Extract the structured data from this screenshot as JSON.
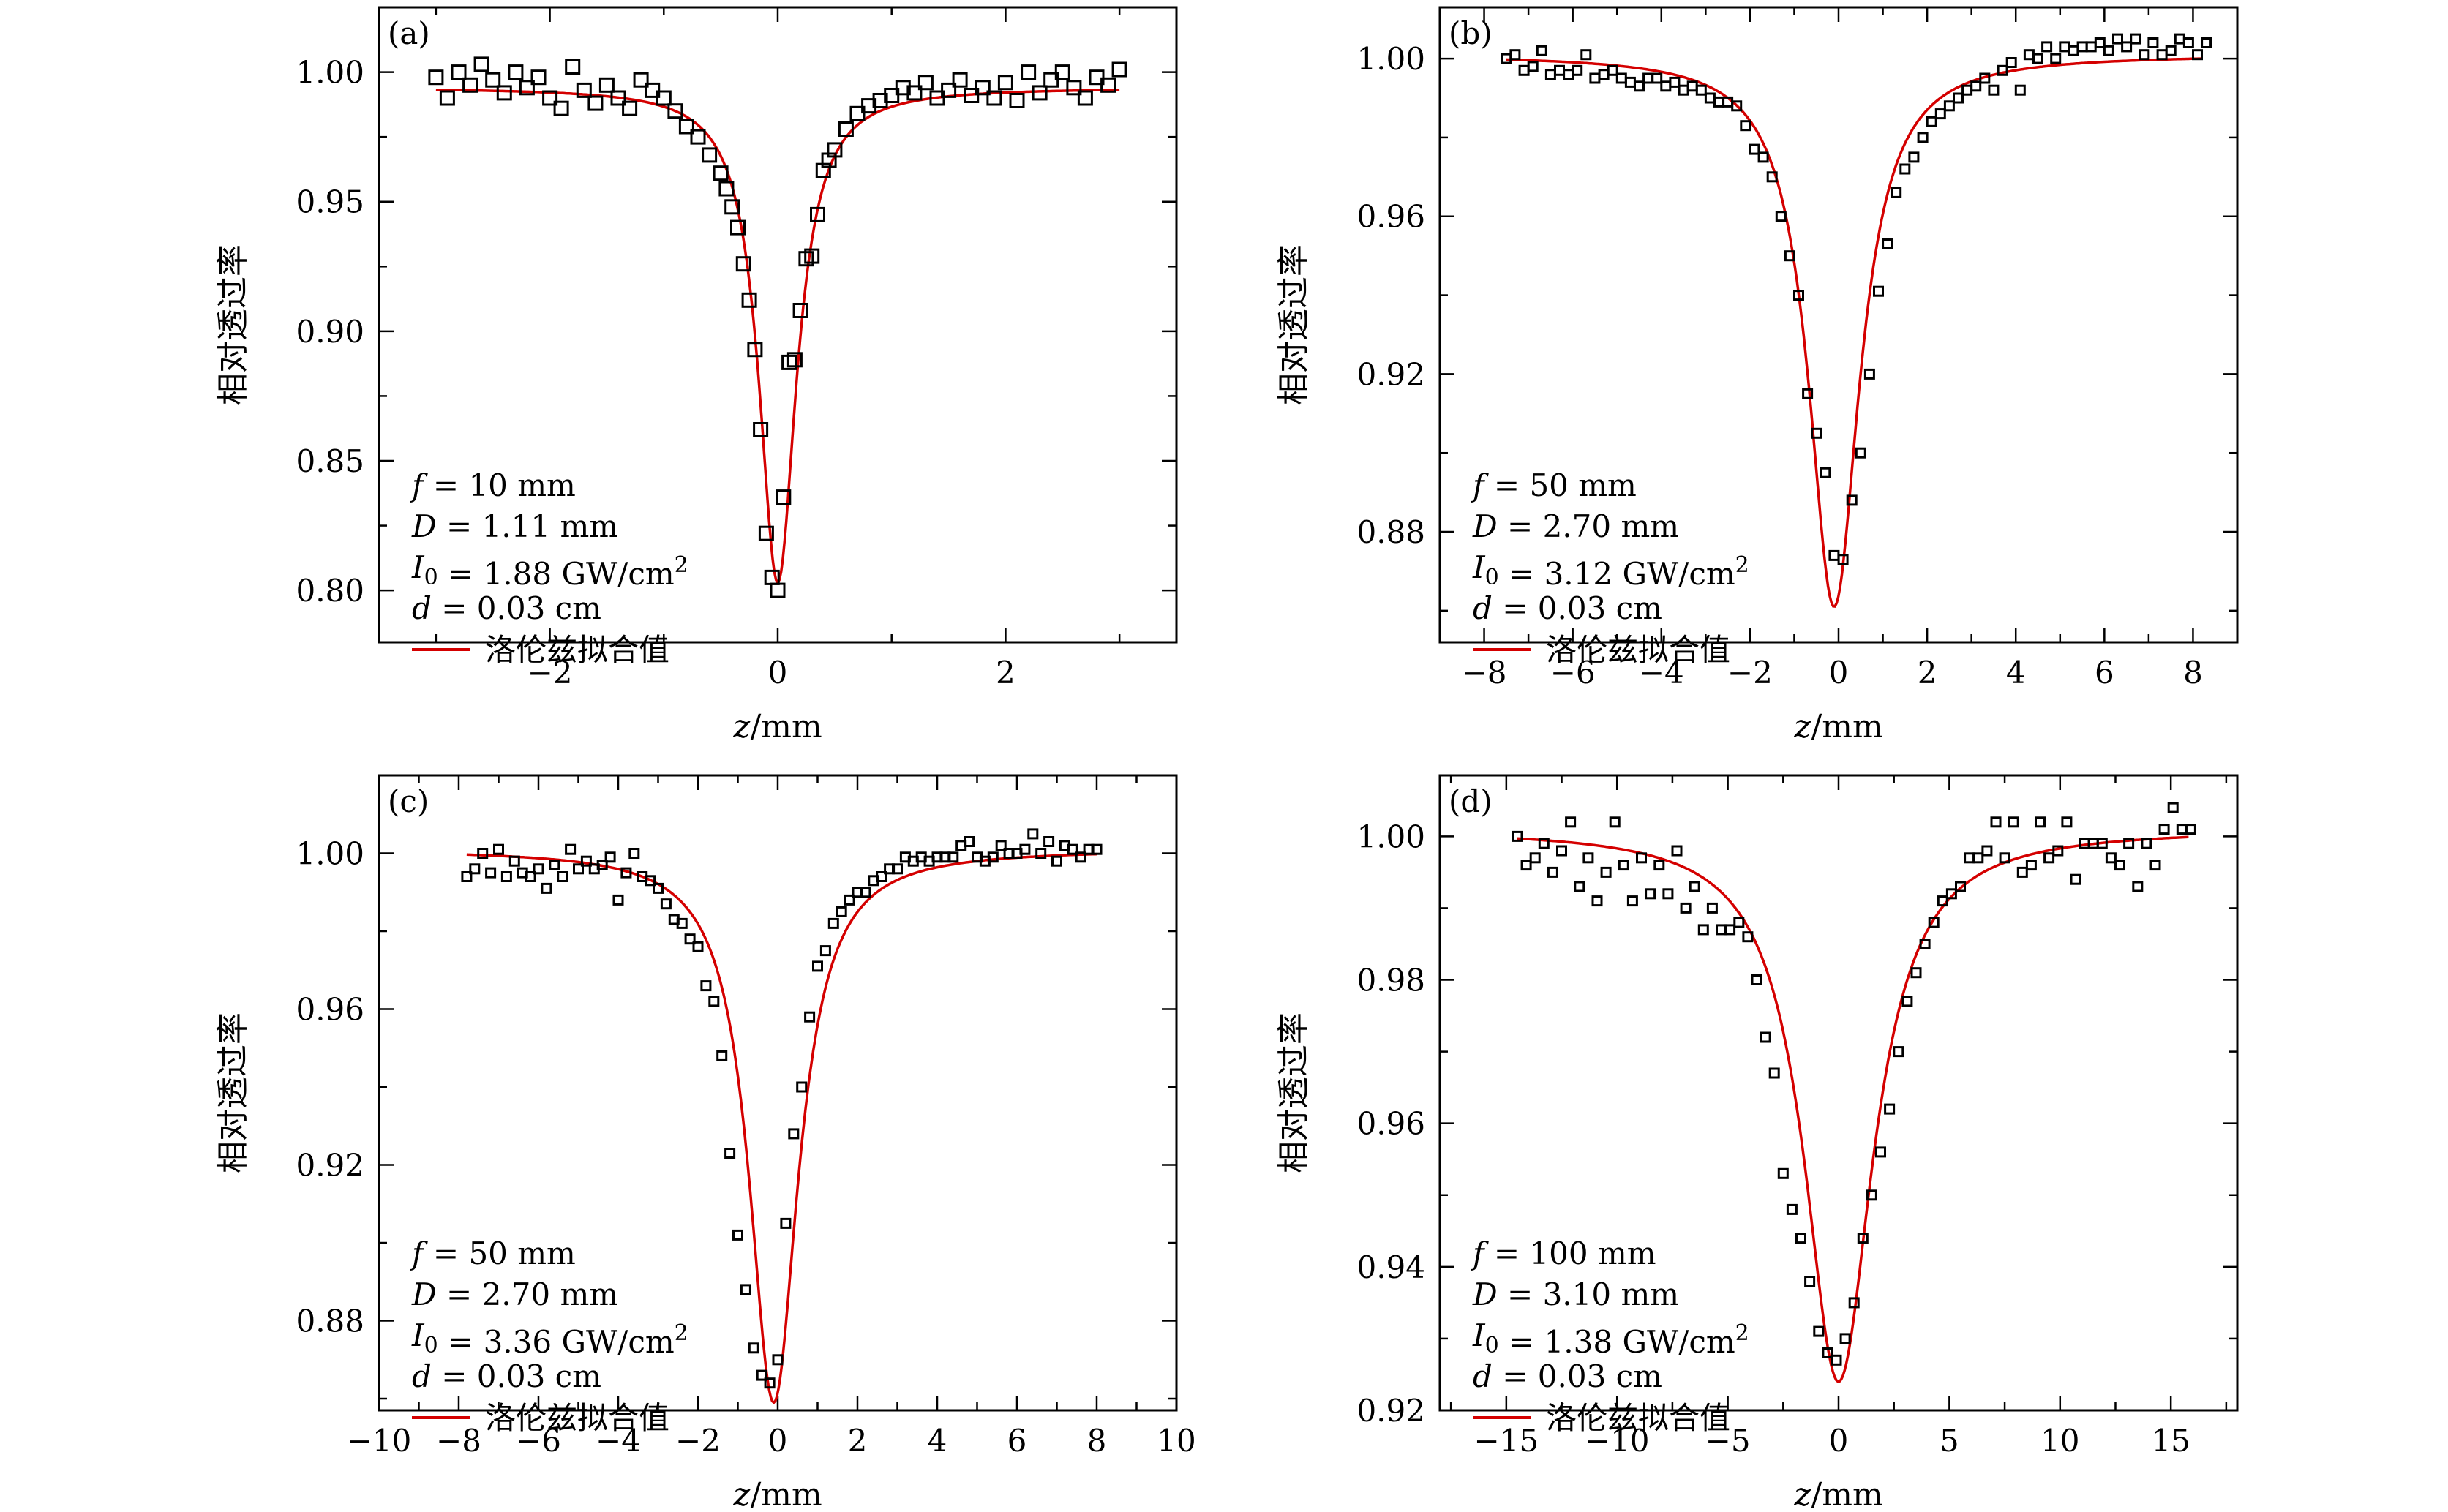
{
  "colors": {
    "fit": "#d40000",
    "points": "#000000",
    "background": "#ffffff"
  },
  "chart_data": [
    {
      "type": "scatter",
      "panel": "(a)",
      "xlabel": "z/mm",
      "ylabel": "相对透过率",
      "xlim": [
        -3.5,
        3.5
      ],
      "ylim": [
        0.78,
        1.025
      ],
      "xticks": [
        -2,
        0,
        2
      ],
      "xtick_labels": [
        "−2",
        "0",
        "2"
      ],
      "yticks": [
        0.8,
        0.85,
        0.9,
        0.95,
        1.0
      ],
      "ytick_labels": [
        "0.80",
        "0.85",
        "0.90",
        "0.95",
        "1.00"
      ],
      "legend": "洛伦兹拟合值",
      "legend_position": "bottom-left",
      "annotations": [
        "f = 10 mm",
        "D = 1.11 mm",
        "I0 = 1.88 GW/cm2",
        "d = 0.03 cm"
      ],
      "fit": {
        "baseline": 0.994,
        "min": 0.803,
        "center": 0.0,
        "hwhm": 0.2,
        "x_range": [
          -3.0,
          3.0
        ]
      },
      "series": [
        {
          "name": "data",
          "x": [
            -3.0,
            -2.9,
            -2.8,
            -2.7,
            -2.6,
            -2.5,
            -2.4,
            -2.3,
            -2.2,
            -2.1,
            -2.0,
            -1.9,
            -1.8,
            -1.7,
            -1.6,
            -1.5,
            -1.4,
            -1.3,
            -1.2,
            -1.1,
            -1.0,
            -0.9,
            -0.8,
            -0.7,
            -0.6,
            -0.5,
            -0.45,
            -0.4,
            -0.35,
            -0.3,
            -0.25,
            -0.2,
            -0.15,
            -0.1,
            -0.05,
            0.0,
            0.05,
            0.1,
            0.15,
            0.2,
            0.25,
            0.3,
            0.35,
            0.4,
            0.45,
            0.5,
            0.6,
            0.7,
            0.8,
            0.9,
            1.0,
            1.1,
            1.2,
            1.3,
            1.4,
            1.5,
            1.6,
            1.7,
            1.8,
            1.9,
            2.0,
            2.1,
            2.2,
            2.3,
            2.4,
            2.5,
            2.6,
            2.7,
            2.8,
            2.9,
            3.0
          ],
          "y": [
            0.998,
            0.99,
            1.0,
            0.995,
            1.003,
            0.997,
            0.992,
            1.0,
            0.994,
            0.998,
            0.99,
            0.986,
            1.002,
            0.993,
            0.988,
            0.995,
            0.99,
            0.986,
            0.997,
            0.993,
            0.99,
            0.985,
            0.979,
            0.975,
            0.968,
            0.961,
            0.955,
            0.948,
            0.94,
            0.926,
            0.912,
            0.893,
            0.862,
            0.822,
            0.805,
            0.8,
            0.836,
            0.888,
            0.889,
            0.908,
            0.928,
            0.929,
            0.945,
            0.962,
            0.966,
            0.97,
            0.978,
            0.984,
            0.987,
            0.989,
            0.991,
            0.994,
            0.992,
            0.996,
            0.99,
            0.993,
            0.997,
            0.991,
            0.994,
            0.99,
            0.996,
            0.989,
            1.0,
            0.992,
            0.997,
            1.0,
            0.994,
            0.99,
            0.998,
            0.995,
            1.001
          ]
        }
      ]
    },
    {
      "type": "scatter",
      "panel": "(b)",
      "xlabel": "z/mm",
      "ylabel": "相对透过率",
      "xlim": [
        -9,
        9
      ],
      "ylim": [
        0.852,
        1.013
      ],
      "xticks": [
        -8,
        -6,
        -4,
        -2,
        0,
        2,
        4,
        6,
        8
      ],
      "xtick_labels": [
        "−8",
        "−6",
        "−4",
        "−2",
        "0",
        "2",
        "4",
        "6",
        "8"
      ],
      "yticks": [
        0.88,
        0.92,
        0.96,
        1.0
      ],
      "ytick_labels": [
        "0.88",
        "0.92",
        "0.96",
        "1.00"
      ],
      "legend": "洛伦兹拟合值",
      "legend_position": "bottom-left",
      "annotations": [
        "f = 50 mm",
        "D = 2.70 mm",
        "I0 = 3.12 GW/cm2",
        "d = 0.03 cm"
      ],
      "fit": {
        "baseline": 1.001,
        "min": 0.861,
        "center": -0.1,
        "hwhm": 0.7,
        "x_range": [
          -7.5,
          8.2
        ]
      },
      "series": [
        {
          "name": "data",
          "x": [
            -7.5,
            -7.3,
            -7.1,
            -6.9,
            -6.7,
            -6.5,
            -6.3,
            -6.1,
            -5.9,
            -5.7,
            -5.5,
            -5.3,
            -5.1,
            -4.9,
            -4.7,
            -4.5,
            -4.3,
            -4.1,
            -3.9,
            -3.7,
            -3.5,
            -3.3,
            -3.1,
            -2.9,
            -2.7,
            -2.5,
            -2.3,
            -2.1,
            -1.9,
            -1.7,
            -1.5,
            -1.3,
            -1.1,
            -0.9,
            -0.7,
            -0.5,
            -0.3,
            -0.1,
            0.1,
            0.3,
            0.5,
            0.7,
            0.9,
            1.1,
            1.3,
            1.5,
            1.7,
            1.9,
            2.1,
            2.3,
            2.5,
            2.7,
            2.9,
            3.1,
            3.3,
            3.5,
            3.7,
            3.9,
            4.1,
            4.3,
            4.5,
            4.7,
            4.9,
            5.1,
            5.3,
            5.5,
            5.7,
            5.9,
            6.1,
            6.3,
            6.5,
            6.7,
            6.9,
            7.1,
            7.3,
            7.5,
            7.7,
            7.9,
            8.1,
            8.3
          ],
          "y": [
            1.0,
            1.001,
            0.997,
            0.998,
            1.002,
            0.996,
            0.997,
            0.996,
            0.997,
            1.001,
            0.995,
            0.996,
            0.997,
            0.995,
            0.994,
            0.993,
            0.995,
            0.995,
            0.993,
            0.994,
            0.992,
            0.993,
            0.992,
            0.99,
            0.989,
            0.989,
            0.988,
            0.983,
            0.977,
            0.975,
            0.97,
            0.96,
            0.95,
            0.94,
            0.915,
            0.905,
            0.895,
            0.874,
            0.873,
            0.888,
            0.9,
            0.92,
            0.941,
            0.953,
            0.966,
            0.972,
            0.975,
            0.98,
            0.984,
            0.986,
            0.988,
            0.99,
            0.992,
            0.993,
            0.995,
            0.992,
            0.997,
            0.999,
            0.992,
            1.001,
            1.0,
            1.003,
            1.0,
            1.003,
            1.002,
            1.003,
            1.003,
            1.004,
            1.002,
            1.005,
            1.003,
            1.005,
            1.001,
            1.004,
            1.001,
            1.002,
            1.005,
            1.004,
            1.001,
            1.004
          ]
        }
      ]
    },
    {
      "type": "scatter",
      "panel": "(c)",
      "xlabel": "z/mm",
      "ylabel": "相对透过率",
      "xlim": [
        -10,
        10
      ],
      "ylim": [
        0.857,
        1.02
      ],
      "xticks": [
        -10,
        -8,
        -6,
        -4,
        -2,
        0,
        2,
        4,
        6,
        8,
        10
      ],
      "xtick_labels": [
        "−10",
        "−8",
        "−6",
        "−4",
        "−2",
        "0",
        "2",
        "4",
        "6",
        "8",
        "10"
      ],
      "yticks": [
        0.88,
        0.92,
        0.96,
        1.0
      ],
      "ytick_labels": [
        "0.88",
        "0.92",
        "0.96",
        "1.00"
      ],
      "legend": "洛伦兹拟合值",
      "legend_position": "bottom-left",
      "annotations": [
        "f = 50 mm",
        "D = 2.70 mm",
        "I0 = 3.36 GW/cm2",
        "d = 0.03 cm"
      ],
      "fit": {
        "baseline": 1.001,
        "min": 0.859,
        "center": -0.1,
        "hwhm": 0.75,
        "x_range": [
          -7.8,
          8.0
        ]
      },
      "series": [
        {
          "name": "data",
          "x": [
            -7.8,
            -7.6,
            -7.4,
            -7.2,
            -7.0,
            -6.8,
            -6.6,
            -6.4,
            -6.2,
            -6.0,
            -5.8,
            -5.6,
            -5.4,
            -5.2,
            -5.0,
            -4.8,
            -4.6,
            -4.4,
            -4.2,
            -4.0,
            -3.8,
            -3.6,
            -3.4,
            -3.2,
            -3.0,
            -2.8,
            -2.6,
            -2.4,
            -2.2,
            -2.0,
            -1.8,
            -1.6,
            -1.4,
            -1.2,
            -1.0,
            -0.8,
            -0.6,
            -0.4,
            -0.2,
            0.0,
            0.2,
            0.4,
            0.6,
            0.8,
            1.0,
            1.2,
            1.4,
            1.6,
            1.8,
            2.0,
            2.2,
            2.4,
            2.6,
            2.8,
            3.0,
            3.2,
            3.4,
            3.6,
            3.8,
            4.0,
            4.2,
            4.4,
            4.6,
            4.8,
            5.0,
            5.2,
            5.4,
            5.6,
            5.8,
            6.0,
            6.2,
            6.4,
            6.6,
            6.8,
            7.0,
            7.2,
            7.4,
            7.6,
            7.8,
            8.0
          ],
          "y": [
            0.994,
            0.996,
            1.0,
            0.995,
            1.001,
            0.994,
            0.998,
            0.995,
            0.994,
            0.996,
            0.991,
            0.997,
            0.994,
            1.001,
            0.996,
            0.998,
            0.996,
            0.997,
            0.999,
            0.988,
            0.995,
            1.0,
            0.994,
            0.993,
            0.991,
            0.987,
            0.983,
            0.982,
            0.978,
            0.976,
            0.966,
            0.962,
            0.948,
            0.923,
            0.902,
            0.888,
            0.873,
            0.866,
            0.864,
            0.87,
            0.905,
            0.928,
            0.94,
            0.958,
            0.971,
            0.975,
            0.982,
            0.985,
            0.988,
            0.99,
            0.99,
            0.993,
            0.994,
            0.996,
            0.996,
            0.999,
            0.998,
            0.999,
            0.998,
            0.999,
            0.999,
            0.999,
            1.002,
            1.003,
            0.999,
            0.998,
            0.999,
            1.002,
            1.0,
            1.0,
            1.001,
            1.005,
            1.0,
            1.003,
            0.998,
            1.002,
            1.001,
            0.999,
            1.001,
            1.001
          ]
        }
      ]
    },
    {
      "type": "scatter",
      "panel": "(d)",
      "xlabel": "z/mm",
      "ylabel": "相对透过率",
      "xlim": [
        -18,
        18
      ],
      "ylim": [
        0.92,
        1.0085
      ],
      "xticks": [
        -15,
        -10,
        -5,
        0,
        5,
        10,
        15
      ],
      "xtick_labels": [
        "−15",
        "−10",
        "−5",
        "0",
        "5",
        "10",
        "15"
      ],
      "yticks": [
        0.92,
        0.94,
        0.96,
        0.98,
        1.0
      ],
      "ytick_labels": [
        "0.92",
        "0.94",
        "0.96",
        "0.98",
        "1.00"
      ],
      "legend": "洛伦兹拟合值",
      "legend_position": "bottom-left",
      "annotations": [
        "f = 100 mm",
        "D = 3.10 mm",
        "I0 = 1.38 GW/cm2",
        "d = 0.03 cm"
      ],
      "fit": {
        "baseline": 1.001,
        "min": 0.924,
        "center": 0.0,
        "hwhm": 1.9,
        "x_range": [
          -14.5,
          15.8
        ]
      },
      "series": [
        {
          "name": "data",
          "x": [
            -14.5,
            -14.1,
            -13.7,
            -13.3,
            -12.9,
            -12.5,
            -12.1,
            -11.7,
            -11.3,
            -10.9,
            -10.5,
            -10.1,
            -9.7,
            -9.3,
            -8.9,
            -8.5,
            -8.1,
            -7.7,
            -7.3,
            -6.9,
            -6.5,
            -6.1,
            -5.7,
            -5.3,
            -4.9,
            -4.5,
            -4.1,
            -3.7,
            -3.3,
            -2.9,
            -2.5,
            -2.1,
            -1.7,
            -1.3,
            -0.9,
            -0.5,
            -0.1,
            0.3,
            0.7,
            1.1,
            1.5,
            1.9,
            2.3,
            2.7,
            3.1,
            3.5,
            3.9,
            4.3,
            4.7,
            5.1,
            5.5,
            5.9,
            6.3,
            6.7,
            7.1,
            7.5,
            7.9,
            8.3,
            8.7,
            9.1,
            9.5,
            9.9,
            10.3,
            10.7,
            11.1,
            11.5,
            11.9,
            12.3,
            12.7,
            13.1,
            13.5,
            13.9,
            14.3,
            14.7,
            15.1,
            15.5,
            15.9
          ],
          "y": [
            1.0,
            0.996,
            0.997,
            0.999,
            0.995,
            0.998,
            1.002,
            0.993,
            0.997,
            0.991,
            0.995,
            1.002,
            0.996,
            0.991,
            0.997,
            0.992,
            0.996,
            0.992,
            0.998,
            0.99,
            0.993,
            0.987,
            0.99,
            0.987,
            0.987,
            0.988,
            0.986,
            0.98,
            0.972,
            0.967,
            0.953,
            0.948,
            0.944,
            0.938,
            0.931,
            0.928,
            0.927,
            0.93,
            0.935,
            0.944,
            0.95,
            0.956,
            0.962,
            0.97,
            0.977,
            0.981,
            0.985,
            0.988,
            0.991,
            0.992,
            0.993,
            0.997,
            0.997,
            0.998,
            1.002,
            0.997,
            1.002,
            0.995,
            0.996,
            1.002,
            0.997,
            0.998,
            1.002,
            0.994,
            0.999,
            0.999,
            0.999,
            0.997,
            0.996,
            0.999,
            0.993,
            0.999,
            0.996,
            1.001,
            1.004,
            1.001,
            1.001
          ]
        }
      ]
    }
  ]
}
